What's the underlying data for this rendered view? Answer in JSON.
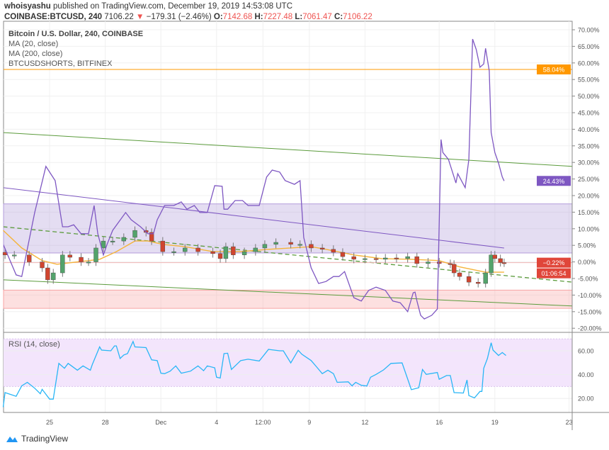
{
  "header": {
    "publisher": "whoisyashu",
    "published_text": "published on TradingView.com, December 19, 2019 14:53:08 UTC",
    "symbol": "COINBASE:BTCUSD, 240",
    "last": "7106.22",
    "change": "−179.31 (−2.46%)",
    "o_label": "O:",
    "o": "7142.68",
    "h_label": "H:",
    "h": "7227.48",
    "l_label": "L:",
    "l": "7061.47",
    "c_label": "C:",
    "c": "7106.22"
  },
  "legend": {
    "main": "Bitcoin / U.S. Dollar, 240, COINBASE",
    "ma20": "MA (20, close)",
    "ma200": "MA (200, close)",
    "shorts": "BTCUSDSHORTS, BITFINEX",
    "rsi": "RSI (14, close)"
  },
  "badges": {
    "shorts_level": "58.04%",
    "shorts_last": "24.43%",
    "price_change": "−0.22%",
    "countdown": "01:06:54"
  },
  "brand": "TradingView",
  "colors": {
    "up": "#53a36b",
    "down": "#d0452f",
    "ma20": "#f5b43b",
    "shorts": "#7e57c2",
    "rsi": "#29b6f6",
    "trend": "#5b9b3c",
    "orange": "#ff9800"
  },
  "chart_data": {
    "type": "line",
    "title": "Bitcoin / U.S. Dollar, 240, COINBASE",
    "yunit": "%",
    "ylim": [
      -22,
      72
    ],
    "y_ticks": [
      "70.00%",
      "65.00%",
      "60.00%",
      "55.00%",
      "50.00%",
      "45.00%",
      "40.00%",
      "35.00%",
      "30.00%",
      "25.00%",
      "20.00%",
      "15.00%",
      "10.00%",
      "5.00%",
      "0.00%",
      "-5.00%",
      "-10.00%",
      "-15.00%",
      "-20.00%"
    ],
    "y_tick_values": [
      70,
      65,
      60,
      55,
      50,
      45,
      40,
      35,
      30,
      25,
      20,
      15,
      10,
      5,
      0,
      -5,
      -10,
      -15,
      -20
    ],
    "x_ticks": [
      {
        "label": "25",
        "day": 25
      },
      {
        "label": "28",
        "day": 28
      },
      {
        "label": "Dec",
        "day": 31
      },
      {
        "label": "4",
        "day": 34
      },
      {
        "label": "12:00",
        "day": 36.5
      },
      {
        "label": "9",
        "day": 39
      },
      {
        "label": "12",
        "day": 42
      },
      {
        "label": "16",
        "day": 46
      },
      {
        "label": "19",
        "day": 49
      },
      {
        "label": "23",
        "day": 53
      }
    ],
    "x_note": "day counted from Nov (Dec 1 = 31)",
    "price_closes": [
      [
        22.6,
        2.1
      ],
      [
        23.1,
        2.1
      ],
      [
        23.9,
        0
      ],
      [
        24.6,
        -1.8
      ],
      [
        24.9,
        -5.4
      ],
      [
        25.2,
        -3.3
      ],
      [
        25.7,
        2.1
      ],
      [
        26.1,
        1.4
      ],
      [
        26.7,
        0
      ],
      [
        27.1,
        0
      ],
      [
        27.5,
        4.2
      ],
      [
        27.9,
        6.3
      ],
      [
        28.4,
        6.3
      ],
      [
        29.0,
        7.4
      ],
      [
        29.6,
        9.5
      ],
      [
        30.2,
        8.9
      ],
      [
        30.5,
        6.3
      ],
      [
        31.1,
        3.1
      ],
      [
        31.7,
        3.1
      ],
      [
        32.3,
        4.2
      ],
      [
        33.0,
        3.1
      ],
      [
        33.8,
        2.5
      ],
      [
        34.2,
        1.0
      ],
      [
        34.5,
        4.6
      ],
      [
        34.9,
        2.1
      ],
      [
        35.5,
        3.1
      ],
      [
        36.1,
        4.2
      ],
      [
        36.6,
        5.3
      ],
      [
        37.2,
        5.9
      ],
      [
        38.0,
        5.3
      ],
      [
        38.5,
        5.3
      ],
      [
        39.1,
        4.2
      ],
      [
        39.7,
        3.8
      ],
      [
        40.3,
        2.9
      ],
      [
        40.8,
        1.6
      ],
      [
        41.4,
        0.8
      ],
      [
        42.0,
        1.0
      ],
      [
        42.6,
        0.8
      ],
      [
        43.1,
        1.2
      ],
      [
        43.7,
        1.0
      ],
      [
        44.3,
        1.6
      ],
      [
        44.8,
        -0.5
      ],
      [
        45.4,
        0
      ],
      [
        46.0,
        -0.5
      ],
      [
        46.6,
        -0.7
      ],
      [
        46.8,
        -3.3
      ],
      [
        47.1,
        -4.4
      ],
      [
        47.6,
        -6.1
      ],
      [
        48.1,
        -6.5
      ],
      [
        48.5,
        -3.3
      ],
      [
        48.8,
        2.1
      ],
      [
        49.0,
        1.0
      ],
      [
        49.3,
        -0.2
      ],
      [
        49.5,
        -0.3
      ]
    ],
    "ma20": [
      [
        22.5,
        9.5
      ],
      [
        23.5,
        4.2
      ],
      [
        24.6,
        0.4
      ],
      [
        25.4,
        -0.7
      ],
      [
        26.5,
        0
      ],
      [
        27.7,
        0.8
      ],
      [
        28.6,
        3.1
      ],
      [
        29.6,
        6.3
      ],
      [
        30.3,
        6.3
      ],
      [
        31.1,
        5.3
      ],
      [
        32.3,
        4.6
      ],
      [
        33.8,
        3.1
      ],
      [
        35.3,
        3.1
      ],
      [
        36.8,
        3.8
      ],
      [
        38.0,
        4.2
      ],
      [
        39.1,
        4.6
      ],
      [
        39.9,
        3.8
      ],
      [
        41.4,
        2.1
      ],
      [
        42.9,
        1.0
      ],
      [
        44.5,
        0.8
      ],
      [
        46.0,
        0.4
      ],
      [
        47.1,
        -1.5
      ],
      [
        48.5,
        -3.1
      ],
      [
        49.5,
        -3.1
      ]
    ],
    "shorts": [
      [
        22.5,
        5.3
      ],
      [
        23.2,
        -3.9
      ],
      [
        23.5,
        -4.4
      ],
      [
        24.2,
        14.9
      ],
      [
        24.8,
        28.8
      ],
      [
        25.3,
        24.5
      ],
      [
        25.7,
        10.6
      ],
      [
        26.0,
        10.6
      ],
      [
        26.3,
        11.2
      ],
      [
        26.7,
        8.5
      ],
      [
        27.1,
        8.5
      ],
      [
        27.4,
        17.0
      ],
      [
        27.6,
        8.5
      ],
      [
        27.9,
        2.1
      ],
      [
        28.1,
        5.3
      ],
      [
        28.4,
        9.5
      ],
      [
        29.1,
        14.9
      ],
      [
        29.4,
        12.7
      ],
      [
        29.9,
        10.6
      ],
      [
        30.3,
        8.5
      ],
      [
        30.6,
        8.5
      ],
      [
        30.8,
        12.7
      ],
      [
        31.2,
        17.0
      ],
      [
        31.7,
        17.0
      ],
      [
        32.1,
        18.1
      ],
      [
        32.4,
        15.9
      ],
      [
        32.8,
        17.0
      ],
      [
        33.1,
        14.9
      ],
      [
        33.5,
        14.9
      ],
      [
        33.9,
        23.0
      ],
      [
        34.3,
        22.8
      ],
      [
        34.4,
        15.9
      ],
      [
        34.6,
        15.9
      ],
      [
        35.0,
        18.5
      ],
      [
        35.4,
        18.5
      ],
      [
        35.7,
        17.0
      ],
      [
        36.0,
        17.0
      ],
      [
        36.3,
        17.0
      ],
      [
        36.7,
        25.6
      ],
      [
        37.0,
        27.7
      ],
      [
        37.4,
        27.1
      ],
      [
        37.7,
        24.5
      ],
      [
        38.2,
        23.4
      ],
      [
        38.5,
        24.5
      ],
      [
        38.7,
        7.4
      ],
      [
        39.1,
        -1.8
      ],
      [
        39.5,
        -6.5
      ],
      [
        39.9,
        -5.9
      ],
      [
        40.3,
        -4.4
      ],
      [
        40.6,
        -4.4
      ],
      [
        40.9,
        -2.9
      ],
      [
        41.4,
        -10.8
      ],
      [
        41.8,
        -11.8
      ],
      [
        42.2,
        -8.6
      ],
      [
        42.6,
        -7.6
      ],
      [
        43.1,
        -8.6
      ],
      [
        43.5,
        -11.8
      ],
      [
        43.9,
        -12.3
      ],
      [
        44.3,
        -15.0
      ],
      [
        44.6,
        -9.3
      ],
      [
        44.7,
        -9.1
      ],
      [
        44.8,
        -11.8
      ],
      [
        45.0,
        -16.1
      ],
      [
        45.2,
        -17.2
      ],
      [
        45.6,
        -16.1
      ],
      [
        45.9,
        -14.2
      ],
      [
        46.1,
        36.9
      ],
      [
        46.2,
        33.0
      ],
      [
        46.5,
        30.9
      ],
      [
        46.8,
        25.6
      ],
      [
        46.9,
        23.8
      ],
      [
        47.0,
        26.6
      ],
      [
        47.4,
        22.4
      ],
      [
        47.6,
        30.9
      ],
      [
        47.8,
        67.2
      ],
      [
        48.0,
        64.0
      ],
      [
        48.2,
        58.7
      ],
      [
        48.4,
        59.7
      ],
      [
        48.5,
        64.4
      ],
      [
        48.7,
        57.6
      ],
      [
        48.8,
        39.0
      ],
      [
        49.0,
        33.0
      ],
      [
        49.2,
        29.8
      ],
      [
        49.4,
        25.6
      ],
      [
        49.5,
        24.43
      ]
    ],
    "shorts_level": 58.04,
    "zones": [
      {
        "name": "resistance-zone",
        "from": 2.7,
        "to": 17.5,
        "color": "#b39ddb"
      },
      {
        "name": "support-zone",
        "from": -8.5,
        "to": -14,
        "color": "#f8a5a5"
      }
    ],
    "trendlines": [
      {
        "name": "upper-green",
        "from": [
          22.5,
          39
        ],
        "to": [
          53.2,
          28.8
        ],
        "dashed": false,
        "color": "#5b9b3c"
      },
      {
        "name": "lower-green",
        "from": [
          22.5,
          -5.4
        ],
        "to": [
          53.2,
          -13.3
        ],
        "dashed": false,
        "color": "#5b9b3c"
      },
      {
        "name": "purple-channel",
        "from": [
          22.5,
          22.4
        ],
        "to": [
          49.5,
          4.2
        ],
        "dashed": false,
        "color": "#7e57c2"
      },
      {
        "name": "green-dashed",
        "from": [
          22.5,
          10.6
        ],
        "to": [
          53.2,
          -6.1
        ],
        "dashed": true,
        "color": "#5b9b3c"
      }
    ],
    "rsi": {
      "ticks": [
        "60.00",
        "40.00",
        "20.00"
      ],
      "tick_values": [
        60,
        40,
        20
      ],
      "band": [
        30,
        70
      ],
      "values": [
        [
          22.5,
          12.7
        ],
        [
          22.6,
          24.9
        ],
        [
          23.2,
          21.8
        ],
        [
          23.5,
          30.6
        ],
        [
          23.8,
          33.5
        ],
        [
          24.2,
          28.6
        ],
        [
          24.5,
          23.9
        ],
        [
          24.6,
          27.6
        ],
        [
          25.0,
          19.4
        ],
        [
          25.2,
          19.4
        ],
        [
          25.5,
          49.4
        ],
        [
          25.8,
          45.3
        ],
        [
          26.0,
          49.4
        ],
        [
          26.5,
          43.7
        ],
        [
          26.8,
          47.3
        ],
        [
          27.2,
          43.7
        ],
        [
          27.3,
          48.4
        ],
        [
          27.7,
          63.3
        ],
        [
          27.8,
          60.6
        ],
        [
          28.3,
          60.0
        ],
        [
          28.5,
          64.1
        ],
        [
          28.6,
          64.1
        ],
        [
          28.8,
          53.5
        ],
        [
          29.0,
          56.5
        ],
        [
          29.2,
          57.6
        ],
        [
          29.5,
          67.8
        ],
        [
          29.6,
          63.3
        ],
        [
          30.2,
          62.7
        ],
        [
          30.5,
          52.4
        ],
        [
          30.8,
          51.8
        ],
        [
          31.0,
          41.2
        ],
        [
          31.2,
          40.8
        ],
        [
          31.5,
          42.9
        ],
        [
          31.8,
          47.3
        ],
        [
          32.1,
          41.2
        ],
        [
          32.6,
          42.9
        ],
        [
          33.0,
          47.3
        ],
        [
          33.3,
          43.3
        ],
        [
          33.5,
          47.3
        ],
        [
          33.9,
          45.7
        ],
        [
          34.0,
          37.8
        ],
        [
          34.2,
          37.1
        ],
        [
          34.4,
          57.6
        ],
        [
          34.6,
          58.0
        ],
        [
          34.8,
          44.3
        ],
        [
          35.3,
          51.8
        ],
        [
          35.7,
          52.9
        ],
        [
          36.3,
          51.4
        ],
        [
          36.8,
          61.2
        ],
        [
          37.4,
          60.0
        ],
        [
          37.6,
          60.0
        ],
        [
          38.0,
          49.8
        ],
        [
          38.4,
          60.4
        ],
        [
          38.6,
          57.1
        ],
        [
          39.1,
          51.8
        ],
        [
          39.4,
          46.3
        ],
        [
          39.7,
          40.8
        ],
        [
          40.0,
          43.7
        ],
        [
          40.3,
          40.8
        ],
        [
          40.5,
          33.5
        ],
        [
          41.1,
          33.9
        ],
        [
          41.3,
          30.6
        ],
        [
          41.5,
          33.5
        ],
        [
          41.8,
          31.0
        ],
        [
          42.1,
          30.4
        ],
        [
          42.3,
          37.8
        ],
        [
          42.6,
          40.2
        ],
        [
          43.0,
          43.9
        ],
        [
          43.4,
          49.4
        ],
        [
          44.0,
          49.8
        ],
        [
          44.5,
          27.3
        ],
        [
          44.9,
          29.0
        ],
        [
          45.1,
          44.3
        ],
        [
          45.3,
          40.2
        ],
        [
          45.9,
          41.8
        ],
        [
          46.0,
          36.1
        ],
        [
          46.4,
          39.2
        ],
        [
          46.6,
          39.2
        ],
        [
          46.8,
          24.9
        ],
        [
          47.3,
          24.5
        ],
        [
          47.5,
          35.5
        ],
        [
          47.6,
          22.4
        ],
        [
          47.9,
          20.4
        ],
        [
          48.2,
          25.9
        ],
        [
          48.3,
          25.9
        ],
        [
          48.4,
          45.3
        ],
        [
          48.6,
          53.5
        ],
        [
          48.8,
          66.7
        ],
        [
          48.9,
          60.6
        ],
        [
          49.2,
          56.1
        ],
        [
          49.4,
          58.6
        ],
        [
          49.6,
          56.1
        ]
      ]
    }
  }
}
